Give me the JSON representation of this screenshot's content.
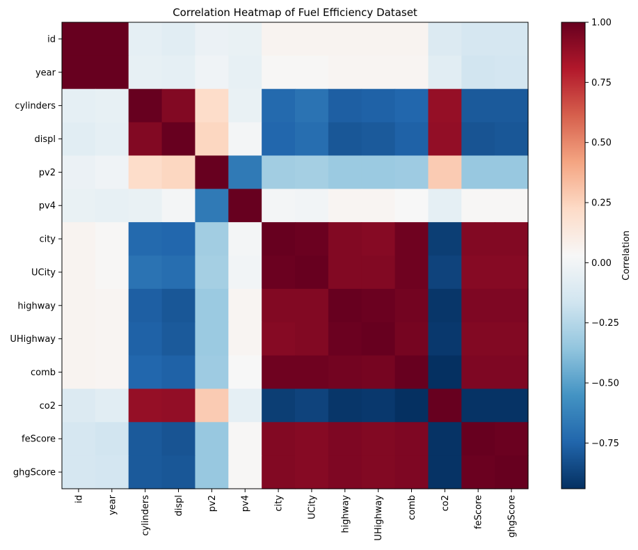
{
  "chart_data": {
    "type": "heatmap",
    "title": "Correlation Heatmap of Fuel Efficiency Dataset",
    "xlabel": "",
    "ylabel": "",
    "colormap": "RdBu_r",
    "color_range": [
      -0.94,
      1.0
    ],
    "colorbar": {
      "label": "Correlation",
      "ticks": [
        -0.75,
        -0.5,
        -0.25,
        0.0,
        0.25,
        0.5,
        0.75,
        1.0
      ],
      "tick_labels": [
        "−0.75",
        "−0.50",
        "−0.25",
        "0.00",
        "0.25",
        "0.50",
        "0.75",
        "1.00"
      ]
    },
    "variables": [
      "id",
      "year",
      "cylinders",
      "displ",
      "pv2",
      "pv4",
      "city",
      "UCity",
      "highway",
      "UHighway",
      "comb",
      "co2",
      "feScore",
      "ghgScore"
    ],
    "matrix": [
      [
        1.0,
        1.0,
        -0.06,
        -0.08,
        -0.03,
        -0.04,
        0.06,
        0.06,
        0.06,
        0.06,
        0.06,
        -0.11,
        -0.14,
        -0.14
      ],
      [
        1.0,
        1.0,
        -0.05,
        -0.06,
        -0.01,
        -0.05,
        0.04,
        0.04,
        0.05,
        0.05,
        0.05,
        -0.08,
        -0.16,
        -0.15
      ],
      [
        -0.06,
        -0.05,
        1.0,
        0.93,
        0.21,
        -0.04,
        -0.73,
        -0.69,
        -0.77,
        -0.76,
        -0.74,
        0.88,
        -0.79,
        -0.79
      ],
      [
        -0.08,
        -0.06,
        0.93,
        1.0,
        0.24,
        0.01,
        -0.74,
        -0.71,
        -0.8,
        -0.79,
        -0.76,
        0.89,
        -0.81,
        -0.8
      ],
      [
        -0.03,
        -0.01,
        0.21,
        0.24,
        1.0,
        -0.66,
        -0.31,
        -0.3,
        -0.33,
        -0.33,
        -0.32,
        0.28,
        -0.34,
        -0.34
      ],
      [
        -0.04,
        -0.05,
        -0.04,
        0.01,
        -0.66,
        1.0,
        0.01,
        0.0,
        0.05,
        0.05,
        0.03,
        -0.06,
        0.04,
        0.04
      ],
      [
        0.06,
        0.04,
        -0.73,
        -0.74,
        -0.31,
        0.01,
        1.0,
        0.99,
        0.93,
        0.92,
        0.98,
        -0.89,
        0.93,
        0.93
      ],
      [
        0.06,
        0.04,
        -0.69,
        -0.71,
        -0.3,
        0.0,
        0.99,
        1.0,
        0.93,
        0.93,
        0.98,
        -0.87,
        0.92,
        0.92
      ],
      [
        0.06,
        0.05,
        -0.77,
        -0.8,
        -0.33,
        0.05,
        0.93,
        0.93,
        1.0,
        0.99,
        0.97,
        -0.92,
        0.94,
        0.94
      ],
      [
        0.06,
        0.05,
        -0.76,
        -0.79,
        -0.33,
        0.05,
        0.92,
        0.93,
        0.99,
        1.0,
        0.96,
        -0.91,
        0.93,
        0.93
      ],
      [
        0.06,
        0.05,
        -0.74,
        -0.76,
        -0.32,
        0.03,
        0.98,
        0.98,
        0.97,
        0.96,
        1.0,
        -0.94,
        0.94,
        0.94
      ],
      [
        -0.11,
        -0.08,
        0.88,
        0.89,
        0.28,
        -0.06,
        -0.89,
        -0.87,
        -0.92,
        -0.91,
        -0.94,
        1.0,
        -0.93,
        -0.93
      ],
      [
        -0.14,
        -0.16,
        -0.79,
        -0.81,
        -0.34,
        0.04,
        0.93,
        0.92,
        0.94,
        0.93,
        0.94,
        -0.93,
        1.0,
        0.99
      ],
      [
        -0.14,
        -0.15,
        -0.79,
        -0.8,
        -0.34,
        0.04,
        0.93,
        0.92,
        0.94,
        0.93,
        0.94,
        -0.93,
        0.99,
        1.0
      ]
    ]
  }
}
